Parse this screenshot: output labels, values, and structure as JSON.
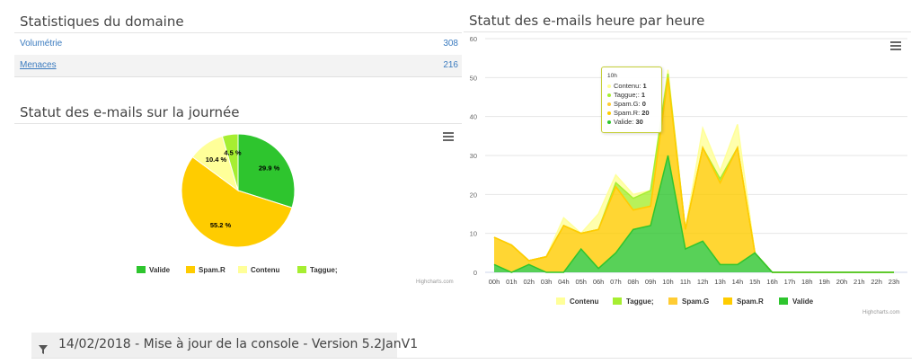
{
  "stats": {
    "title": "Statistiques du domaine",
    "rows": [
      {
        "label": "Volumétrie",
        "value": "308"
      },
      {
        "label": "Menaces",
        "value": "216"
      }
    ]
  },
  "footer": {
    "text": "14/02/2018 - Mise à jour de la console - Version 5.2JanV1"
  },
  "colors": {
    "Valide": "#2ec52e",
    "Spam.R": "#ffcc00",
    "Contenu": "#ffff99",
    "Taggue;": "#a6ee31",
    "Spam.G": "#ffcc33"
  },
  "chart_data": [
    {
      "type": "pie",
      "title": "Statut des e-mails sur la journée",
      "credit": "Highcharts.com",
      "slices": [
        {
          "name": "Valide",
          "value": 29.9,
          "label": "29.9 %"
        },
        {
          "name": "Spam.R",
          "value": 55.2,
          "label": "55.2 %"
        },
        {
          "name": "Contenu",
          "value": 10.4,
          "label": "10.4 %"
        },
        {
          "name": "Taggue;",
          "value": 4.5,
          "label": "4.5 %"
        }
      ],
      "legend": [
        "Valide",
        "Spam.R",
        "Contenu",
        "Taggue;"
      ],
      "legend_position": "bottom"
    },
    {
      "type": "area",
      "stacked": true,
      "title": "Statut des e-mails heure par heure",
      "credit": "Highcharts.com",
      "categories": [
        "00h",
        "01h",
        "02h",
        "03h",
        "04h",
        "05h",
        "06h",
        "07h",
        "08h",
        "09h",
        "10h",
        "11h",
        "12h",
        "13h",
        "14h",
        "15h",
        "16h",
        "17h",
        "18h",
        "19h",
        "20h",
        "21h",
        "22h",
        "23h"
      ],
      "ylim": [
        0,
        60
      ],
      "yticks": [
        "0",
        "10",
        "20",
        "30",
        "40",
        "50",
        "60"
      ],
      "grid": true,
      "series": [
        {
          "name": "Contenu",
          "values": [
            0,
            0,
            0,
            0,
            2,
            0,
            4,
            2,
            1,
            0,
            1,
            0,
            5,
            2,
            6,
            0,
            0,
            0,
            0,
            0,
            0,
            0,
            0,
            0
          ]
        },
        {
          "name": "Taggue;",
          "values": [
            0,
            0,
            0,
            0,
            0,
            0,
            0,
            1,
            3,
            4,
            1,
            0,
            0,
            1,
            0,
            0,
            0,
            0,
            0,
            0,
            0,
            0,
            0,
            0
          ]
        },
        {
          "name": "Spam.G",
          "values": [
            0,
            0,
            0,
            0,
            0,
            0,
            0,
            0,
            0,
            0,
            0,
            0,
            0,
            0,
            0,
            0,
            0,
            0,
            0,
            0,
            0,
            0,
            0,
            0
          ]
        },
        {
          "name": "Spam.R",
          "values": [
            7,
            7,
            1,
            4,
            12,
            4,
            10,
            17,
            5,
            5,
            20,
            5,
            24,
            21,
            30,
            0,
            0,
            0,
            0,
            0,
            0,
            0,
            0,
            0
          ]
        },
        {
          "name": "Valide",
          "values": [
            2,
            0,
            2,
            0,
            0,
            6,
            1,
            5,
            11,
            12,
            30,
            6,
            8,
            2,
            2,
            5,
            0,
            0,
            0,
            0,
            0,
            0,
            0,
            0
          ]
        }
      ],
      "legend": [
        "Contenu",
        "Taggue;",
        "Spam.G",
        "Spam.R",
        "Valide"
      ],
      "legend_position": "bottom",
      "tooltip": {
        "header": "10h",
        "rows": [
          {
            "name": "Contenu",
            "sep": ": ",
            "value": "1"
          },
          {
            "name": "Taggue;",
            "sep": ": ",
            "value": "1"
          },
          {
            "name": "Spam.G",
            "sep": ": ",
            "value": "0"
          },
          {
            "name": "Spam.R",
            "sep": ": ",
            "value": "20"
          },
          {
            "name": "Valide",
            "sep": ": ",
            "value": "30"
          }
        ]
      }
    }
  ]
}
